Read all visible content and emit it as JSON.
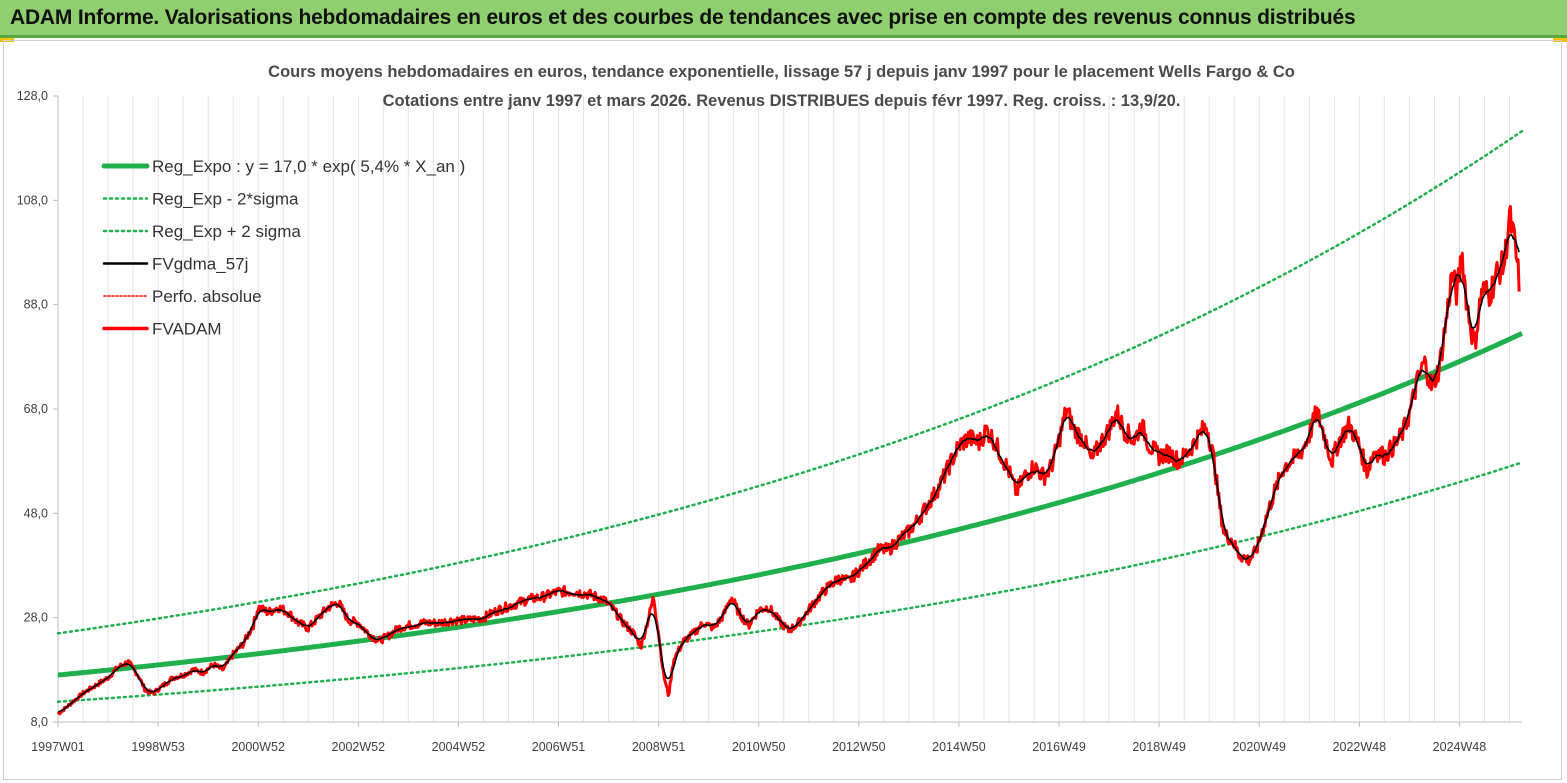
{
  "banner": {
    "title": "ADAM Informe. Valorisations hebdomadaires en euros et des courbes de tendances avec prise en compte des revenus connus distribués"
  },
  "colors": {
    "banner_bg": "#8fcf6f",
    "trend": "#1fb04d",
    "band": "#1fb04d",
    "smooth": "#000000",
    "fvadam": "#ff0000",
    "perfo": "#ff0000"
  },
  "chart_data": {
    "type": "line",
    "title": "Cours moyens hebdomadaires en euros, tendance exponentielle, lissage 57 j depuis janv 1997 pour le placement Wells Fargo & Co",
    "subtitle": "Cotations entre janv 1997 et mars 2026. Revenus DISTRIBUES depuis févr 1997. Reg. croiss. : 13,9/20.",
    "xlabel": "",
    "ylabel": "",
    "ylim": [
      8,
      128
    ],
    "xlim": [
      1997.0,
      2026.25
    ],
    "grid": "vertical",
    "legend_position": "top-left",
    "y_ticks": [
      "128,0",
      "108,0",
      "88,0",
      "68,0",
      "48,0",
      "28,0",
      "8,0"
    ],
    "x_ticks": [
      {
        "label": "1997W01",
        "x": 1997.0
      },
      {
        "label": "1998W53",
        "x": 1999.0
      },
      {
        "label": "2000W52",
        "x": 2001.0
      },
      {
        "label": "2002W52",
        "x": 2003.0
      },
      {
        "label": "2004W52",
        "x": 2005.0
      },
      {
        "label": "2006W51",
        "x": 2007.0
      },
      {
        "label": "2008W51",
        "x": 2009.0
      },
      {
        "label": "2010W50",
        "x": 2011.0
      },
      {
        "label": "2012W50",
        "x": 2013.0
      },
      {
        "label": "2014W50",
        "x": 2015.0
      },
      {
        "label": "2016W49",
        "x": 2017.0
      },
      {
        "label": "2018W49",
        "x": 2019.0
      },
      {
        "label": "2020W49",
        "x": 2021.0
      },
      {
        "label": "2022W48",
        "x": 2023.0
      },
      {
        "label": "2024W48",
        "x": 2025.0
      }
    ],
    "series": [
      {
        "name": "Reg_Expo : y = 17,0 * exp( 5,4% *  X_an )",
        "style": "thick-solid",
        "kind": "exp",
        "a": 17.0,
        "b": 0.054,
        "factor": 1.0
      },
      {
        "name": "Reg_Exp - 2*sigma",
        "style": "dotted",
        "kind": "exp",
        "a": 17.0,
        "b": 0.054,
        "factor": 0.7
      },
      {
        "name": "Reg_Exp + 2 sigma",
        "style": "dotted",
        "kind": "exp",
        "a": 17.0,
        "b": 0.054,
        "factor": 1.47
      },
      {
        "name": "FVgdma_57j",
        "style": "thin-solid",
        "kind": "smoothed"
      },
      {
        "name": "Perfo. absolue",
        "style": "dotted-thin",
        "kind": "none"
      },
      {
        "name": "FVADAM",
        "style": "solid",
        "kind": "points"
      }
    ],
    "fvadam_points": [
      [
        1997.0,
        9.5
      ],
      [
        1997.25,
        11.5
      ],
      [
        1997.5,
        13.5
      ],
      [
        1997.75,
        15
      ],
      [
        1998.0,
        16.5
      ],
      [
        1998.2,
        18.5
      ],
      [
        1998.4,
        19.5
      ],
      [
        1998.6,
        17
      ],
      [
        1998.75,
        14
      ],
      [
        1998.9,
        13.5
      ],
      [
        1999.1,
        15
      ],
      [
        1999.3,
        16.5
      ],
      [
        1999.5,
        17
      ],
      [
        1999.7,
        18
      ],
      [
        1999.9,
        17.5
      ],
      [
        2000.1,
        19
      ],
      [
        2000.3,
        18
      ],
      [
        2000.5,
        21
      ],
      [
        2000.7,
        23
      ],
      [
        2000.9,
        26.5
      ],
      [
        2001.0,
        30
      ],
      [
        2001.2,
        29
      ],
      [
        2001.4,
        30
      ],
      [
        2001.6,
        29
      ],
      [
        2001.8,
        27
      ],
      [
        2002.0,
        26
      ],
      [
        2002.2,
        28
      ],
      [
        2002.4,
        30
      ],
      [
        2002.6,
        31
      ],
      [
        2002.8,
        27.5
      ],
      [
        2003.0,
        27
      ],
      [
        2003.2,
        25
      ],
      [
        2003.4,
        23.5
      ],
      [
        2003.6,
        24.5
      ],
      [
        2003.8,
        26
      ],
      [
        2004.0,
        26.5
      ],
      [
        2004.3,
        27
      ],
      [
        2004.6,
        27
      ],
      [
        2004.9,
        27.5
      ],
      [
        2005.2,
        27.5
      ],
      [
        2005.5,
        28
      ],
      [
        2005.8,
        29.5
      ],
      [
        2006.1,
        30.5
      ],
      [
        2006.4,
        31.5
      ],
      [
        2006.7,
        32
      ],
      [
        2007.0,
        33
      ],
      [
        2007.3,
        33
      ],
      [
        2007.6,
        32.5
      ],
      [
        2007.9,
        31.5
      ],
      [
        2008.1,
        29.5
      ],
      [
        2008.3,
        27
      ],
      [
        2008.5,
        25
      ],
      [
        2008.65,
        22.5
      ],
      [
        2008.8,
        28
      ],
      [
        2008.9,
        32
      ],
      [
        2009.0,
        25
      ],
      [
        2009.1,
        17
      ],
      [
        2009.2,
        13
      ],
      [
        2009.3,
        20
      ],
      [
        2009.5,
        23.5
      ],
      [
        2009.7,
        25
      ],
      [
        2009.9,
        27
      ],
      [
        2010.1,
        26
      ],
      [
        2010.3,
        28.5
      ],
      [
        2010.45,
        32
      ],
      [
        2010.6,
        29
      ],
      [
        2010.8,
        26.5
      ],
      [
        2011.0,
        29.5
      ],
      [
        2011.2,
        30
      ],
      [
        2011.4,
        27.5
      ],
      [
        2011.6,
        25.5
      ],
      [
        2011.8,
        27
      ],
      [
        2012.0,
        29.5
      ],
      [
        2012.2,
        32
      ],
      [
        2012.4,
        34
      ],
      [
        2012.6,
        35.5
      ],
      [
        2012.8,
        35
      ],
      [
        2013.0,
        37
      ],
      [
        2013.2,
        39
      ],
      [
        2013.4,
        41
      ],
      [
        2013.6,
        41
      ],
      [
        2013.8,
        43
      ],
      [
        2014.0,
        44.5
      ],
      [
        2014.2,
        47
      ],
      [
        2014.4,
        50
      ],
      [
        2014.6,
        53
      ],
      [
        2014.8,
        57
      ],
      [
        2015.0,
        61
      ],
      [
        2015.2,
        62.5
      ],
      [
        2015.4,
        61.5
      ],
      [
        2015.55,
        64
      ],
      [
        2015.7,
        62
      ],
      [
        2015.85,
        59
      ],
      [
        2016.0,
        56
      ],
      [
        2016.15,
        52
      ],
      [
        2016.3,
        55
      ],
      [
        2016.5,
        57
      ],
      [
        2016.7,
        55
      ],
      [
        2016.85,
        57
      ],
      [
        2017.0,
        62
      ],
      [
        2017.15,
        68
      ],
      [
        2017.3,
        64
      ],
      [
        2017.5,
        62
      ],
      [
        2017.65,
        58
      ],
      [
        2017.8,
        61
      ],
      [
        2018.0,
        64
      ],
      [
        2018.15,
        67.5
      ],
      [
        2018.3,
        64
      ],
      [
        2018.5,
        62
      ],
      [
        2018.65,
        65
      ],
      [
        2018.8,
        61
      ],
      [
        2019.0,
        59
      ],
      [
        2019.2,
        59.5
      ],
      [
        2019.4,
        58
      ],
      [
        2019.6,
        60
      ],
      [
        2019.8,
        63
      ],
      [
        2019.95,
        65
      ],
      [
        2020.1,
        58
      ],
      [
        2020.2,
        50
      ],
      [
        2020.3,
        44
      ],
      [
        2020.45,
        43
      ],
      [
        2020.6,
        40
      ],
      [
        2020.8,
        39
      ],
      [
        2020.95,
        41
      ],
      [
        2021.1,
        46
      ],
      [
        2021.3,
        52
      ],
      [
        2021.5,
        57
      ],
      [
        2021.7,
        58.5
      ],
      [
        2021.85,
        60
      ],
      [
        2022.0,
        63
      ],
      [
        2022.15,
        67.5
      ],
      [
        2022.3,
        63
      ],
      [
        2022.45,
        58
      ],
      [
        2022.6,
        62
      ],
      [
        2022.8,
        65
      ],
      [
        2023.0,
        61
      ],
      [
        2023.15,
        56
      ],
      [
        2023.3,
        60
      ],
      [
        2023.5,
        59
      ],
      [
        2023.7,
        61
      ],
      [
        2023.85,
        63
      ],
      [
        2024.0,
        67
      ],
      [
        2024.15,
        73
      ],
      [
        2024.3,
        77
      ],
      [
        2024.45,
        72
      ],
      [
        2024.6,
        76
      ],
      [
        2024.75,
        86
      ],
      [
        2024.85,
        94
      ],
      [
        2024.95,
        90
      ],
      [
        2025.05,
        98
      ],
      [
        2025.15,
        88
      ],
      [
        2025.3,
        80
      ],
      [
        2025.45,
        91
      ],
      [
        2025.6,
        90
      ],
      [
        2025.75,
        94
      ],
      [
        2025.9,
        96
      ],
      [
        2026.0,
        105
      ],
      [
        2026.1,
        100
      ],
      [
        2026.2,
        92
      ]
    ]
  },
  "legend": {
    "items": [
      "Reg_Expo : y = 17,0 * exp( 5,4% *  X_an )",
      "Reg_Exp - 2*sigma",
      "Reg_Exp + 2 sigma",
      "FVgdma_57j",
      "Perfo. absolue",
      "FVADAM"
    ]
  }
}
